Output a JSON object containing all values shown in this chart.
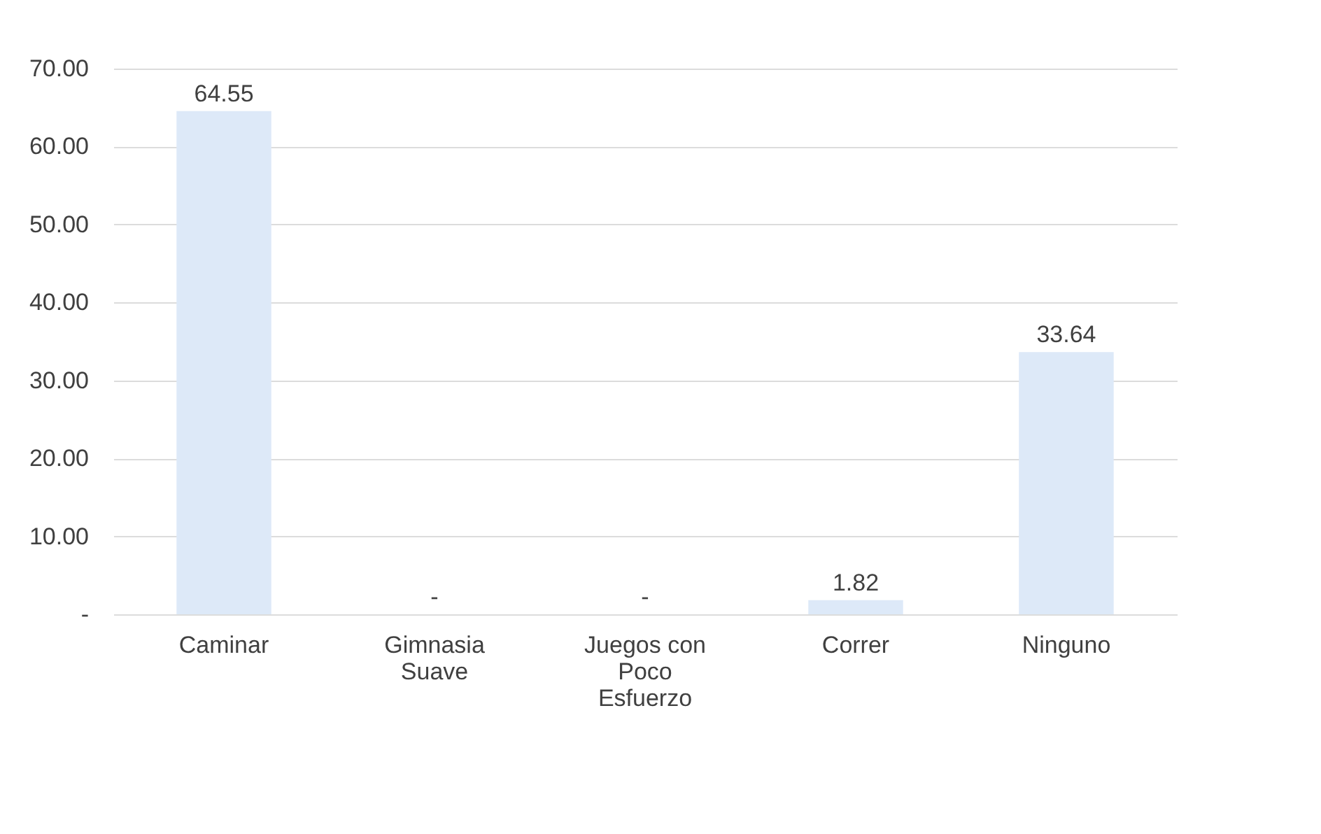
{
  "chart_data": {
    "type": "bar",
    "categories": [
      "Caminar",
      "Gimnasia Suave",
      "Juegos con Poco Esfuerzo",
      "Correr",
      "Ninguno"
    ],
    "values": [
      64.55,
      0,
      0,
      1.82,
      33.64
    ],
    "value_labels": [
      "64.55",
      "-",
      "-",
      "1.82",
      "33.64"
    ],
    "color": "#dde9f8",
    "ylim": [
      0,
      70
    ],
    "yticks": [
      {
        "value": 0,
        "label": "-"
      },
      {
        "value": 10,
        "label": "10.00"
      },
      {
        "value": 20,
        "label": "20.00"
      },
      {
        "value": 30,
        "label": "30.00"
      },
      {
        "value": 40,
        "label": "40.00"
      },
      {
        "value": 50,
        "label": "50.00"
      },
      {
        "value": 60,
        "label": "60.00"
      },
      {
        "value": 70,
        "label": "70.00"
      }
    ],
    "grid": "y"
  }
}
